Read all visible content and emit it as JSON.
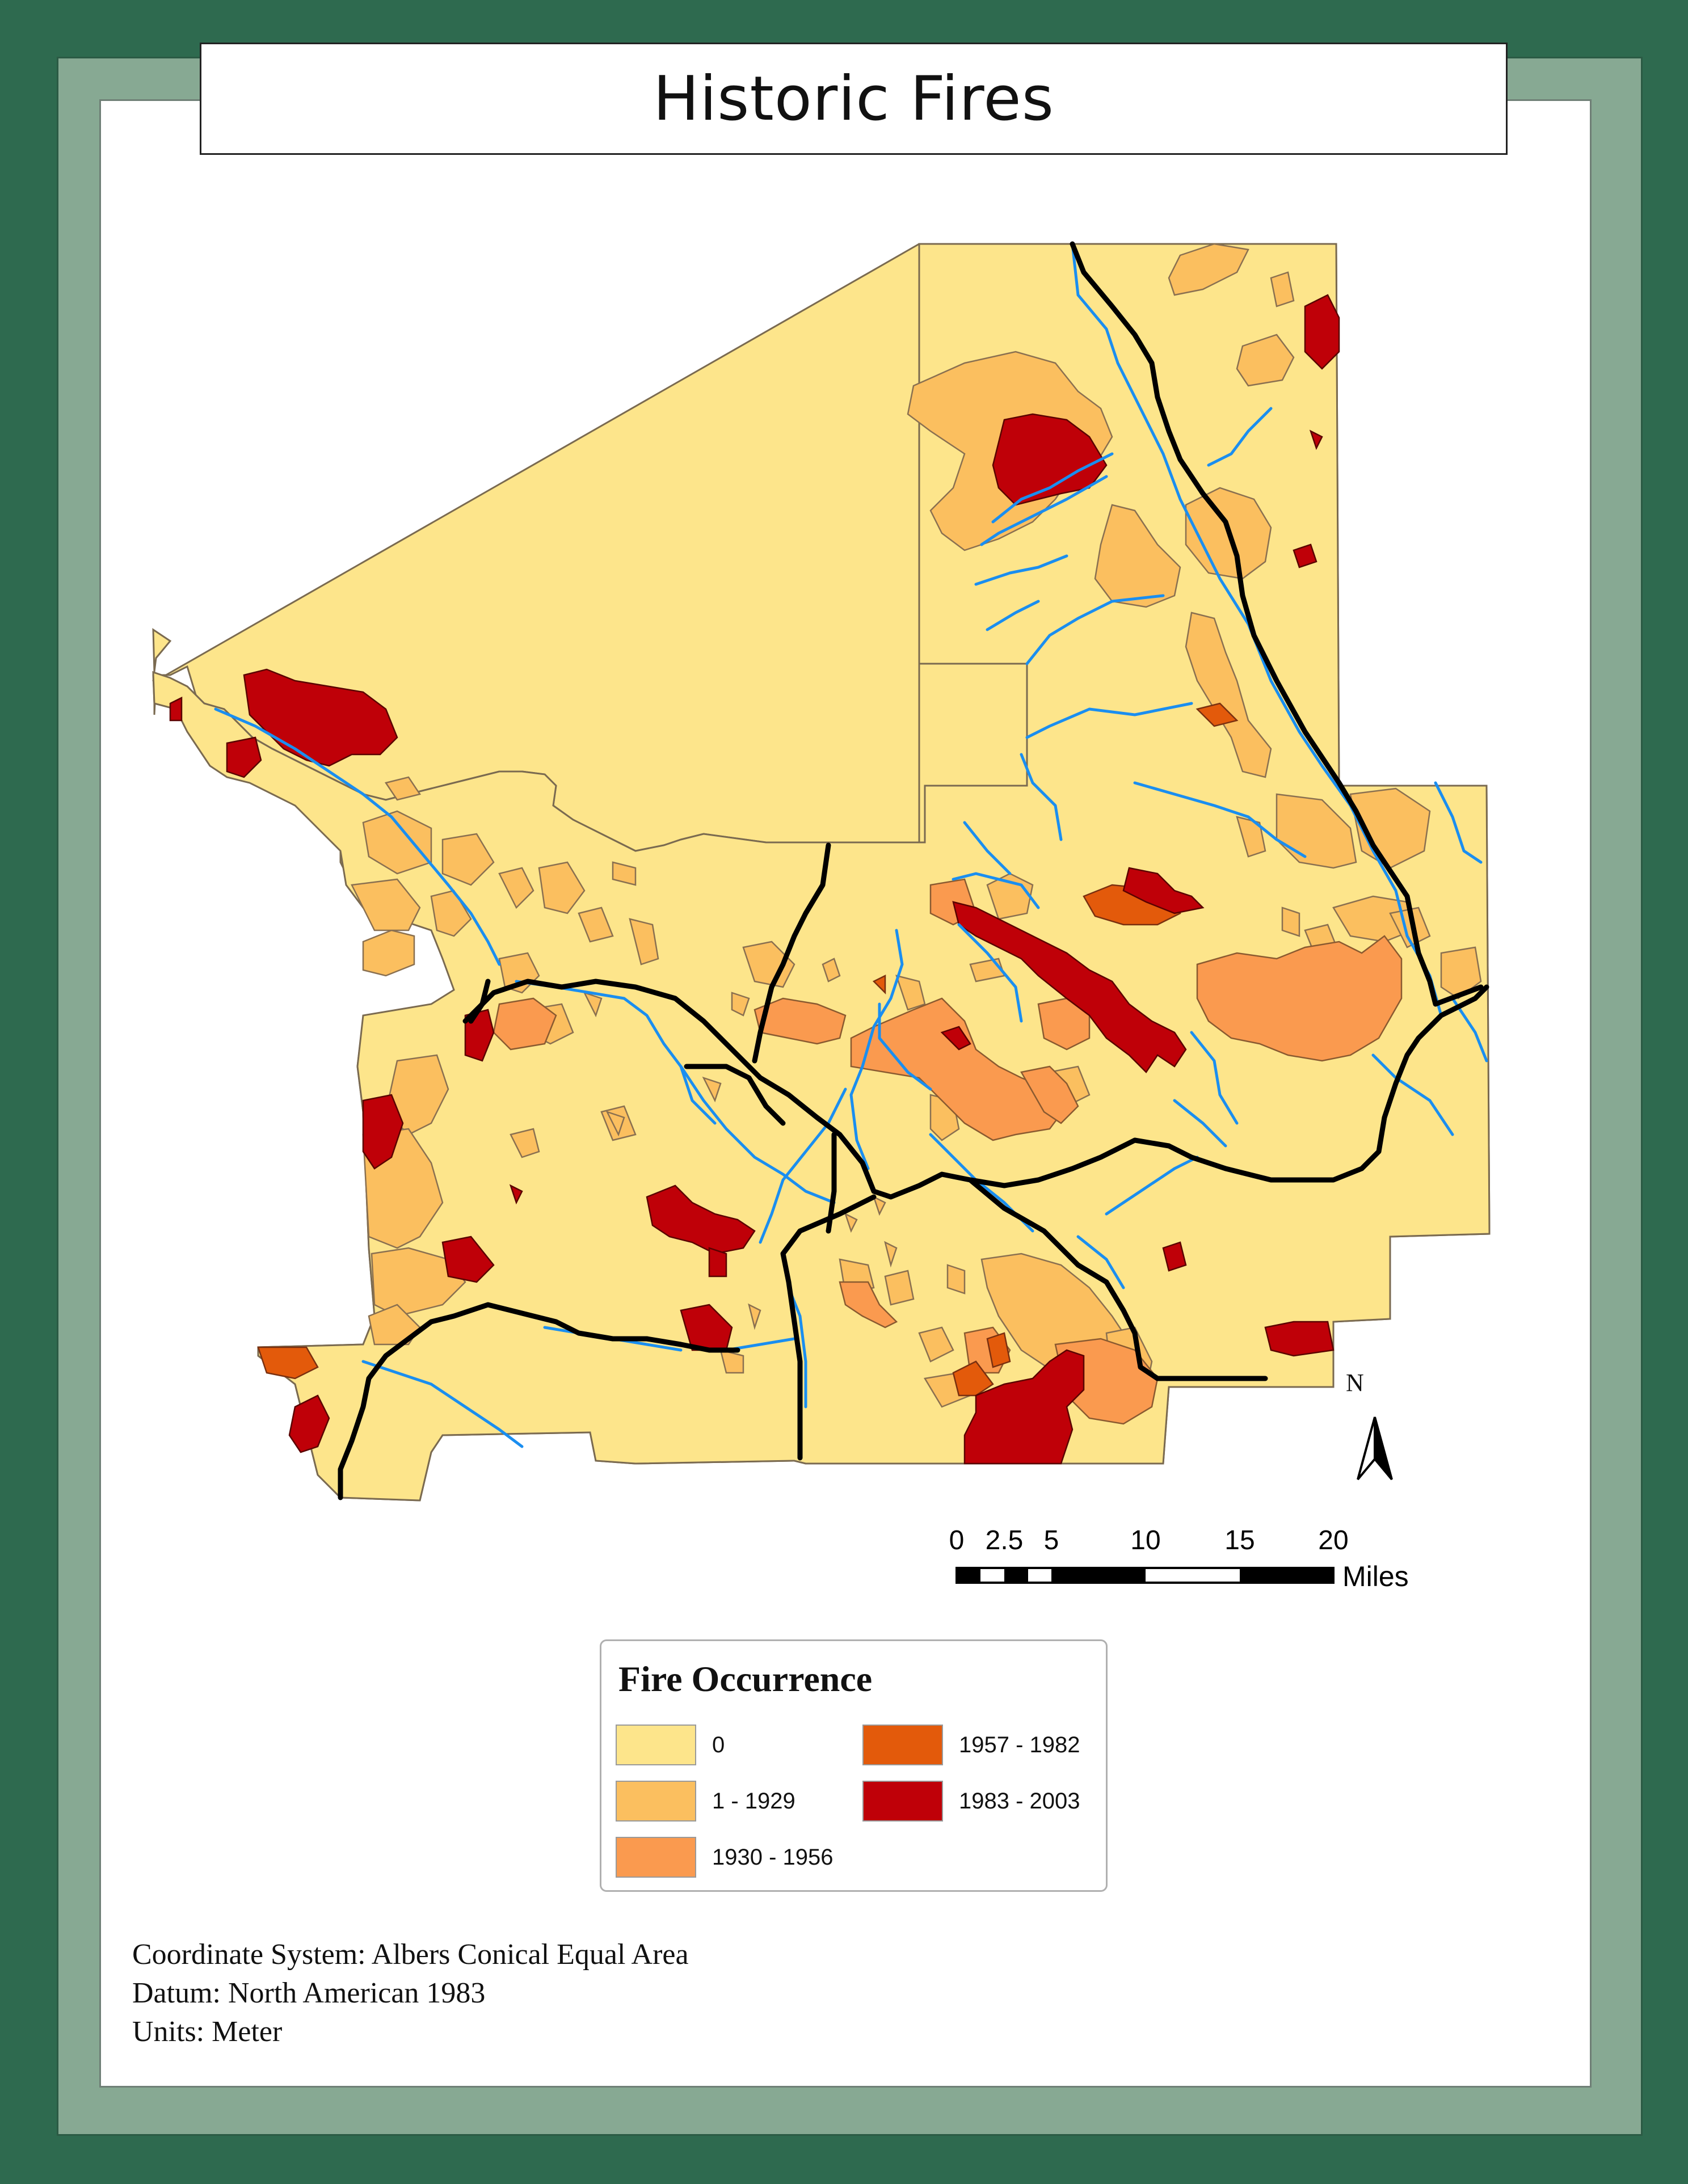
{
  "map": {
    "title": "Historic Fires",
    "north_label": "N",
    "scale_bar": {
      "ticks": [
        "0",
        "2.5",
        "5",
        "10",
        "15",
        "20"
      ],
      "unit": "Miles"
    },
    "legend": {
      "title": "Fire Occurrence",
      "items": [
        {
          "label": "0",
          "color": "#fde58b"
        },
        {
          "label": "1 - 1929",
          "color": "#fbbf5f"
        },
        {
          "label": "1930 - 1956",
          "color": "#fa9a4f"
        },
        {
          "label": "1957 - 1982",
          "color": "#e35a0b"
        },
        {
          "label": "1983 - 2003",
          "color": "#bf0008"
        }
      ]
    },
    "metadata": {
      "coordinate_system": "Coordinate System: Albers Conical Equal Area",
      "datum": "Datum: North American 1983",
      "units": "Units: Meter"
    },
    "colors": {
      "outer_frame": "#2e6a4f",
      "inner_frame": "#87a993",
      "roads": "#000000",
      "rivers": "#1a8ef0"
    }
  }
}
